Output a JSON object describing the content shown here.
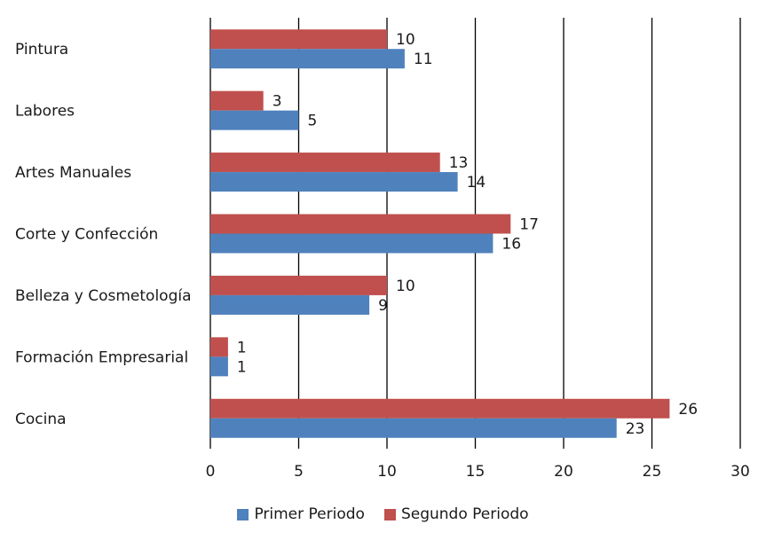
{
  "chart_data": {
    "type": "bar",
    "orientation": "horizontal",
    "categories": [
      "Pintura",
      "Labores",
      "Artes Manuales",
      "Corte y Confección",
      "Belleza y Cosmetología",
      "Formación Empresarial",
      "Cocina"
    ],
    "series": [
      {
        "name": "Segundo Periodo",
        "color": "#c0504d",
        "values": [
          10,
          3,
          13,
          17,
          10,
          1,
          26
        ]
      },
      {
        "name": "Primer Periodo",
        "color": "#4f81bd",
        "values": [
          11,
          5,
          14,
          16,
          9,
          1,
          23
        ]
      }
    ],
    "xlim": [
      0,
      30
    ],
    "xticks": [
      0,
      5,
      10,
      15,
      20,
      25,
      30
    ],
    "grid": "vertical",
    "legend_position": "bottom",
    "legend_order": [
      "Primer Periodo",
      "Segundo Periodo"
    ],
    "data_labels": true
  }
}
